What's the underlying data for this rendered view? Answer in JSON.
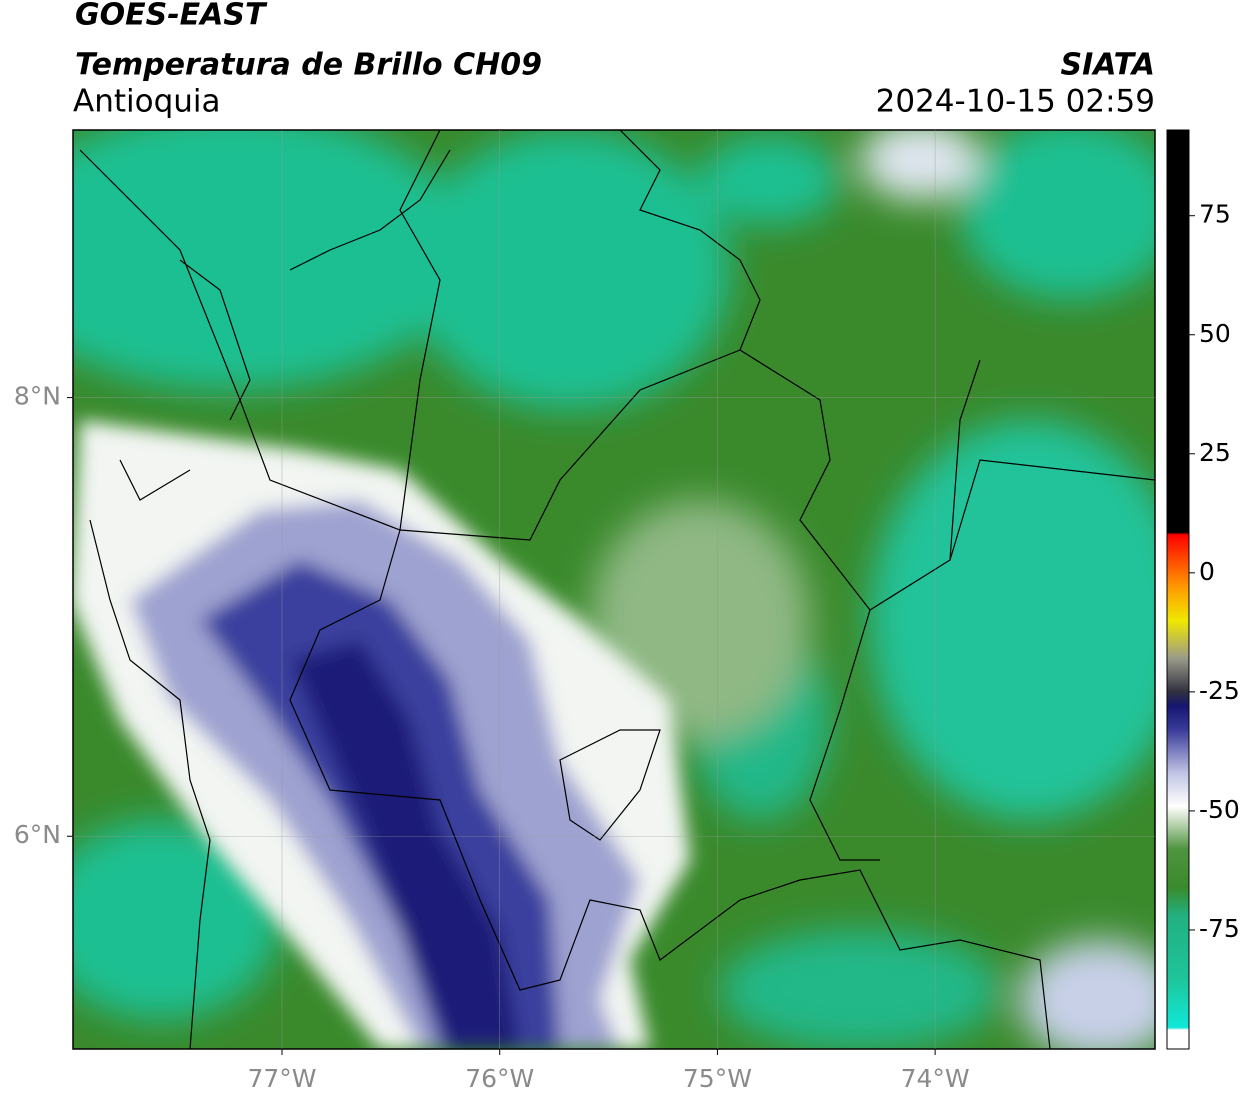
{
  "header": {
    "title": "GOES-EAST",
    "subtitle": "Temperatura de Brillo CH09",
    "region": "Antioquia",
    "source": "SIATA",
    "datetime": "2024-10-15 02:59"
  },
  "map": {
    "xlim": [
      -77.96,
      -72.99
    ],
    "ylim": [
      5.03,
      9.22
    ],
    "xticks": [
      {
        "value": -77,
        "label": "77°W"
      },
      {
        "value": -76,
        "label": "76°W"
      },
      {
        "value": -75,
        "label": "75°W"
      },
      {
        "value": -74,
        "label": "74°W"
      }
    ],
    "yticks": [
      {
        "value": 6,
        "label": "6°N"
      },
      {
        "value": 8,
        "label": "8°N"
      }
    ]
  },
  "colorbar": {
    "lim": [
      -100,
      93
    ],
    "ticks": [
      75,
      50,
      25,
      0,
      -25,
      -50,
      -75
    ],
    "stops": [
      {
        "value": -100,
        "color": "#ffffff"
      },
      {
        "value": -96,
        "color": "#ffffff"
      },
      {
        "value": -95.5,
        "color": "#10e8d8"
      },
      {
        "value": -85,
        "color": "#1ec49a"
      },
      {
        "value": -72,
        "color": "#22b080"
      },
      {
        "value": -66,
        "color": "#3a8a2c"
      },
      {
        "value": -58,
        "color": "#4f9440"
      },
      {
        "value": -52,
        "color": "#c8dcc0"
      },
      {
        "value": -49,
        "color": "#ffffff"
      },
      {
        "value": -42,
        "color": "#c0c4e4"
      },
      {
        "value": -33,
        "color": "#3a3c9a"
      },
      {
        "value": -28,
        "color": "#141670"
      },
      {
        "value": -25,
        "color": "#303040"
      },
      {
        "value": -18,
        "color": "#9a9a8a"
      },
      {
        "value": -10,
        "color": "#f0e800"
      },
      {
        "value": -3,
        "color": "#ff9a00"
      },
      {
        "value": 5,
        "color": "#ff2a00"
      },
      {
        "value": 8,
        "color": "#ff0000"
      },
      {
        "value": 8.5,
        "color": "#000000"
      },
      {
        "value": 93,
        "color": "#000000"
      }
    ]
  }
}
